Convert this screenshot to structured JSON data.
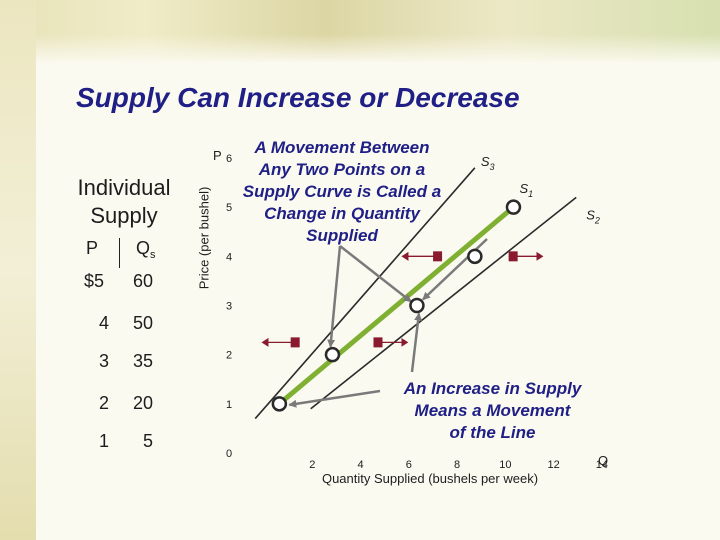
{
  "slide": {
    "title": "Supply Can Increase or Decrease"
  },
  "table": {
    "title": "Individual Supply",
    "header_p": "P",
    "header_q": "Q",
    "header_q_sub": "s",
    "rows": [
      {
        "p": "$5",
        "q": "60"
      },
      {
        "p": "4",
        "q": "50"
      },
      {
        "p": "3",
        "q": "35"
      },
      {
        "p": "2",
        "q": "20"
      },
      {
        "p": "1",
        "q": "5"
      }
    ]
  },
  "annotations": {
    "movement_lines": [
      "A Movement Between",
      "Any Two Points on a",
      "Supply Curve is Called a",
      "Change in Quantity",
      "Supplied"
    ],
    "increase_lines": [
      "An Increase in Supply",
      "Means a Movement",
      "of the Line"
    ]
  },
  "colors": {
    "title": "#1f1f85",
    "curve_s1": "#7fb032",
    "curve_other": "#2a2a2a",
    "shift_arrow": "#8a1a2e",
    "callout_arrow": "#7a7a7a"
  },
  "chart_data": {
    "type": "line",
    "xlabel": "Quantity Supplied (bushels per week)",
    "ylabel": "Price (per bushel)",
    "x_axis_end_label": "Q",
    "y_axis_end_label": "P",
    "x_ticks": [
      2,
      4,
      6,
      8,
      10,
      12,
      14
    ],
    "y_ticks": [
      0,
      1,
      2,
      3,
      4,
      5,
      6
    ],
    "xlim": [
      0,
      15
    ],
    "ylim": [
      0,
      6
    ],
    "grid": false,
    "series": [
      {
        "name": "S3",
        "label_main": "S",
        "label_sub": "3",
        "points": [
          [
            0.3,
            0.7
          ],
          [
            9.4,
            5.8
          ]
        ]
      },
      {
        "name": "S1",
        "label_main": "S",
        "label_sub": "1",
        "points": [
          [
            1.3,
            1.0
          ],
          [
            11.0,
            5.0
          ]
        ]
      },
      {
        "name": "S2",
        "label_main": "S",
        "label_sub": "2",
        "points": [
          [
            2.6,
            0.9
          ],
          [
            13.6,
            5.2
          ]
        ]
      }
    ],
    "markers": [
      {
        "x": 1.3,
        "y": 1.0
      },
      {
        "x": 3.5,
        "y": 2.0
      },
      {
        "x": 7.0,
        "y": 3.0
      },
      {
        "x": 9.4,
        "y": 4.0
      },
      {
        "x": 11.0,
        "y": 5.0
      }
    ],
    "shift_arrows": [
      {
        "y": 2.25,
        "x_from": 2.1,
        "x_to": 0.6
      },
      {
        "y": 2.25,
        "x_from": 5.2,
        "x_to": 6.6
      },
      {
        "y": 4.0,
        "x_from": 8.0,
        "x_to": 6.4
      },
      {
        "y": 4.0,
        "x_from": 10.8,
        "x_to": 12.2
      }
    ]
  }
}
